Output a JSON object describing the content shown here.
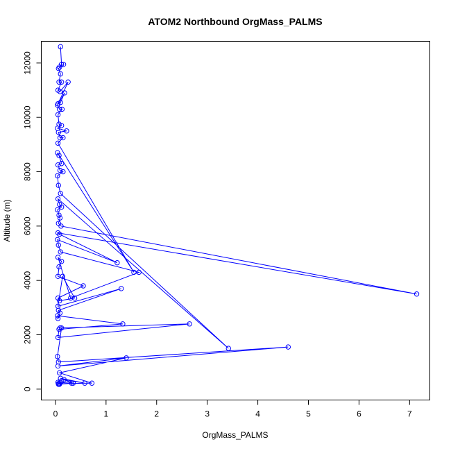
{
  "chart_data": {
    "type": "line",
    "title": "ATOM2 Northbound OrgMass_PALMS",
    "xlabel": "OrgMass_PALMS",
    "ylabel": "Altitude (m)",
    "xlim": [
      -0.28,
      7.4
    ],
    "ylim": [
      -400,
      12800
    ],
    "xticks": [
      0,
      1,
      2,
      3,
      4,
      5,
      6,
      7
    ],
    "yticks": [
      0,
      2000,
      4000,
      6000,
      8000,
      10000,
      12000
    ],
    "grid": false,
    "color": "#0000ff",
    "marker": "open-circle",
    "series": [
      {
        "x": [
          0.1,
          0.12,
          0.08,
          0.16,
          0.06,
          0.1,
          0.07,
          0.12,
          0.05,
          0.09,
          0.25,
          0.05,
          0.1,
          0.18,
          0.04,
          0.08,
          0.13,
          0.05,
          0.07,
          0.12,
          0.04,
          0.22,
          0.06,
          0.09,
          0.15,
          0.05,
          1.55,
          0.04,
          0.07,
          0.12,
          0.05,
          0.09,
          0.15,
          0.04,
          0.06,
          0.1,
          3.42,
          0.05,
          0.08,
          0.12,
          0.04,
          0.07,
          0.09,
          0.06,
          0.11,
          7.14,
          0.05,
          0.08,
          1.22,
          0.04,
          0.06,
          0.1,
          1.65,
          0.3,
          0.05,
          0.12,
          0.07,
          0.05,
          0.55,
          0.05,
          0.08,
          0.38,
          0.14,
          0.05,
          1.3,
          0.06,
          0.09,
          0.05,
          0.04,
          1.33,
          0.07,
          0.05,
          2.65,
          0.09,
          0.12,
          0.04,
          0.06,
          4.6,
          0.05,
          1.4,
          0.08,
          0.72,
          0.06,
          0.05,
          0.32,
          0.1,
          0.58,
          0.17,
          0.35,
          0.08,
          0.06,
          0.1,
          0.12,
          0.06,
          0.08
        ],
        "y": [
          12600,
          11950,
          11850,
          11950,
          11800,
          11600,
          11300,
          11300,
          11000,
          10950,
          11300,
          10500,
          10550,
          10900,
          10450,
          10300,
          10300,
          10100,
          9750,
          9700,
          9600,
          9500,
          9450,
          9250,
          9250,
          9050,
          4300,
          8700,
          8600,
          8300,
          8250,
          8050,
          8000,
          7850,
          7500,
          7200,
          1500,
          7000,
          6800,
          6700,
          6600,
          6400,
          6300,
          6100,
          6000,
          3500,
          5750,
          5700,
          4650,
          5500,
          5300,
          5050,
          4300,
          3350,
          4850,
          4700,
          4500,
          4150,
          3800,
          3350,
          3250,
          3350,
          4150,
          3050,
          3700,
          2900,
          2800,
          2600,
          2700,
          2400,
          2200,
          1900,
          2400,
          2250,
          2250,
          1200,
          1000,
          1550,
          850,
          1150,
          600,
          220,
          200,
          250,
          220,
          400,
          220,
          350,
          220,
          180,
          200,
          250,
          300,
          180,
          200
        ]
      }
    ]
  }
}
